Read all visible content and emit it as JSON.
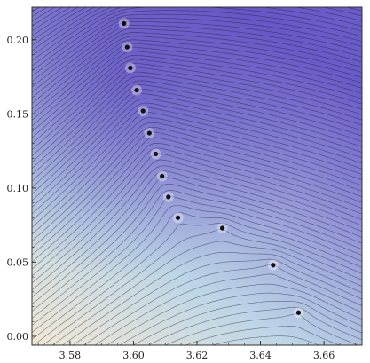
{
  "chart_data": {
    "type": "contour",
    "title": "",
    "xlabel": "",
    "ylabel": "",
    "xlim": [
      3.568,
      3.672
    ],
    "ylim": [
      -0.006,
      0.222
    ],
    "x_ticks": [
      3.58,
      3.6,
      3.62,
      3.64,
      3.66
    ],
    "x_tick_labels": [
      "3.58",
      "3.60",
      "3.62",
      "3.64",
      "3.66"
    ],
    "y_ticks": [
      0.0,
      0.05,
      0.1,
      0.15,
      0.2
    ],
    "y_tick_labels": [
      "0.00",
      "0.05",
      "0.10",
      "0.15",
      "0.20"
    ],
    "grid": false,
    "colors": {
      "low": "#f2e8d5",
      "mid": "#b8d3e6",
      "high": "#6a5bc8",
      "contour": "#1a1a2e",
      "point": "#111111"
    },
    "points": [
      {
        "x": 3.597,
        "y": 0.211
      },
      {
        "x": 3.598,
        "y": 0.195
      },
      {
        "x": 3.599,
        "y": 0.181
      },
      {
        "x": 3.601,
        "y": 0.166
      },
      {
        "x": 3.603,
        "y": 0.152
      },
      {
        "x": 3.605,
        "y": 0.137
      },
      {
        "x": 3.607,
        "y": 0.123
      },
      {
        "x": 3.609,
        "y": 0.108
      },
      {
        "x": 3.611,
        "y": 0.094
      },
      {
        "x": 3.614,
        "y": 0.08
      },
      {
        "x": 3.628,
        "y": 0.073
      },
      {
        "x": 3.644,
        "y": 0.048
      },
      {
        "x": 3.652,
        "y": 0.016
      }
    ]
  }
}
